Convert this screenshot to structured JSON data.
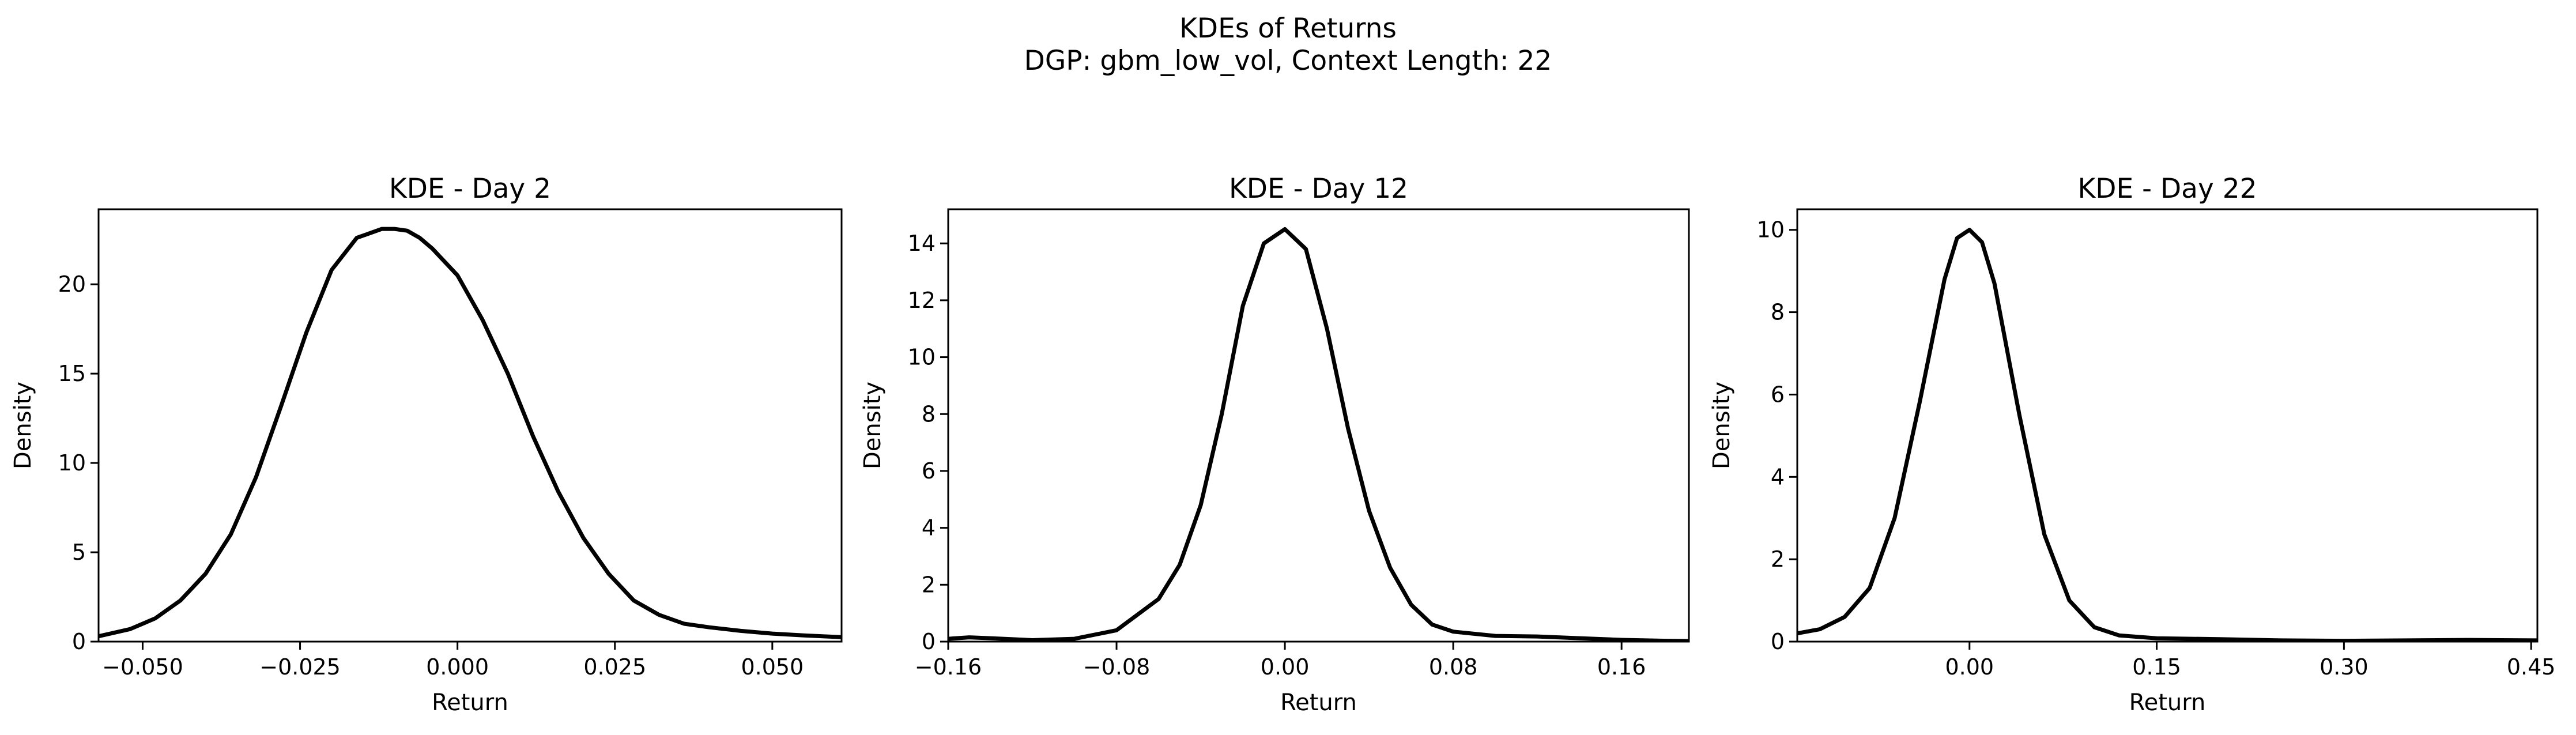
{
  "suptitle": {
    "line1": "KDEs of Returns",
    "line2": "DGP: gbm_low_vol, Context Length: 22"
  },
  "chart_data": [
    {
      "type": "line",
      "title": "KDE - Day 2",
      "xlabel": "Return",
      "ylabel": "Density",
      "xlim": [
        -0.057,
        0.061
      ],
      "ylim": [
        0,
        24.2
      ],
      "xticks": [
        -0.05,
        -0.025,
        0.0,
        0.025,
        0.05
      ],
      "xtick_labels": [
        "−0.050",
        "−0.025",
        "0.000",
        "0.025",
        "0.050"
      ],
      "yticks": [
        0,
        5,
        10,
        15,
        20
      ],
      "ytick_labels": [
        "0",
        "5",
        "10",
        "15",
        "20"
      ],
      "series": [
        {
          "color": "#000000",
          "x": [
            -0.057,
            -0.052,
            -0.048,
            -0.044,
            -0.04,
            -0.036,
            -0.032,
            -0.028,
            -0.024,
            -0.02,
            -0.016,
            -0.012,
            -0.01,
            -0.008,
            -0.006,
            -0.004,
            0.0,
            0.004,
            0.008,
            0.012,
            0.016,
            0.02,
            0.024,
            0.028,
            0.032,
            0.036,
            0.04,
            0.045,
            0.05,
            0.055,
            0.061
          ],
          "y": [
            0.3,
            0.7,
            1.3,
            2.3,
            3.8,
            6.0,
            9.2,
            13.2,
            17.3,
            20.8,
            22.6,
            23.1,
            23.1,
            23.0,
            22.6,
            22.0,
            20.5,
            18.0,
            15.0,
            11.5,
            8.4,
            5.8,
            3.8,
            2.3,
            1.5,
            1.0,
            0.8,
            0.6,
            0.45,
            0.35,
            0.25
          ]
        }
      ]
    },
    {
      "type": "line",
      "title": "KDE - Day 12",
      "xlabel": "Return",
      "ylabel": "Density",
      "xlim": [
        -0.16,
        0.192
      ],
      "ylim": [
        0,
        15.2
      ],
      "xticks": [
        -0.16,
        -0.08,
        0.0,
        0.08,
        0.16
      ],
      "xtick_labels": [
        "−0.16",
        "−0.08",
        "0.00",
        "0.08",
        "0.16"
      ],
      "yticks": [
        0,
        2,
        4,
        6,
        8,
        10,
        12,
        14
      ],
      "ytick_labels": [
        "0",
        "2",
        "4",
        "6",
        "8",
        "10",
        "12",
        "14"
      ],
      "series": [
        {
          "color": "#000000",
          "x": [
            -0.16,
            -0.15,
            -0.14,
            -0.12,
            -0.1,
            -0.08,
            -0.06,
            -0.05,
            -0.04,
            -0.03,
            -0.02,
            -0.01,
            0.0,
            0.01,
            0.02,
            0.03,
            0.04,
            0.05,
            0.06,
            0.07,
            0.08,
            0.1,
            0.12,
            0.14,
            0.16,
            0.18,
            0.192
          ],
          "y": [
            0.1,
            0.15,
            0.12,
            0.05,
            0.1,
            0.4,
            1.5,
            2.7,
            4.8,
            8.0,
            11.8,
            14.0,
            14.5,
            13.8,
            11.0,
            7.5,
            4.6,
            2.6,
            1.3,
            0.6,
            0.35,
            0.2,
            0.18,
            0.12,
            0.06,
            0.03,
            0.02
          ]
        }
      ]
    },
    {
      "type": "line",
      "title": "KDE - Day 22",
      "xlabel": "Return",
      "ylabel": "Density",
      "xlim": [
        -0.138,
        0.455
      ],
      "ylim": [
        0,
        10.5
      ],
      "xticks": [
        0.0,
        0.15,
        0.3,
        0.45
      ],
      "xtick_labels": [
        "0.00",
        "0.15",
        "0.30",
        "0.45"
      ],
      "yticks": [
        0,
        2,
        4,
        6,
        8,
        10
      ],
      "ytick_labels": [
        "0",
        "2",
        "4",
        "6",
        "8",
        "10"
      ],
      "series": [
        {
          "color": "#000000",
          "x": [
            -0.138,
            -0.12,
            -0.1,
            -0.08,
            -0.06,
            -0.04,
            -0.02,
            -0.01,
            0.0,
            0.01,
            0.02,
            0.04,
            0.06,
            0.08,
            0.1,
            0.12,
            0.15,
            0.2,
            0.25,
            0.3,
            0.35,
            0.4,
            0.455
          ],
          "y": [
            0.2,
            0.3,
            0.6,
            1.3,
            3.0,
            5.8,
            8.8,
            9.8,
            10.0,
            9.7,
            8.7,
            5.5,
            2.6,
            1.0,
            0.35,
            0.15,
            0.08,
            0.06,
            0.03,
            0.02,
            0.03,
            0.04,
            0.03
          ]
        }
      ]
    }
  ]
}
